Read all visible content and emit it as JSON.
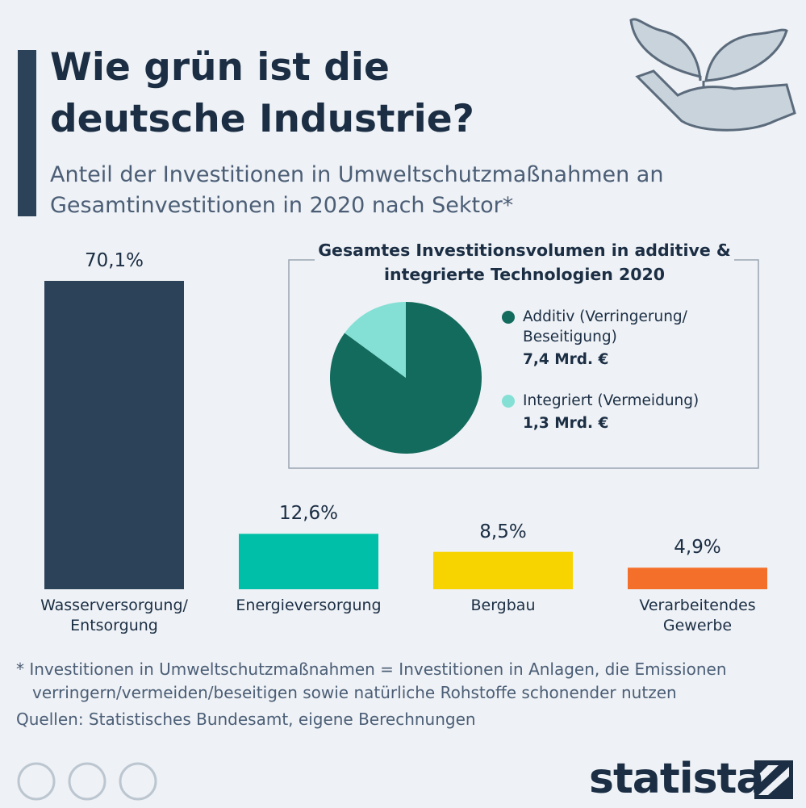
{
  "title": "Wie grün ist die deutsche Industrie?",
  "subtitle": "Anteil der Investitionen in Umweltschutzmaßnahmen an Gesamtinvestitionen in 2020 nach Sektor*",
  "footnote": "* Investitionen in Umweltschutzmaßnahmen = Investitionen in Anlagen, die Emissionen verringern/vermeiden/beseitigen sowie natürliche Rohstoffe schonender nutzen",
  "source": "Quellen: Statistisches Bundesamt, eigene Berechnungen",
  "brand": "statista",
  "chart_data": [
    {
      "type": "bar",
      "categories": [
        "Wasserversorgung/ Entsorgung",
        "Energieversorgung",
        "Bergbau",
        "Verarbeitendes Gewerbe"
      ],
      "values": [
        70.1,
        12.6,
        8.5,
        4.9
      ],
      "value_labels": [
        "70,1%",
        "12,6%",
        "8,5%",
        "4,9%"
      ],
      "colors": [
        "#2b4259",
        "#00bfa8",
        "#f7d300",
        "#f4702a"
      ]
    },
    {
      "type": "pie",
      "title": "Gesamtes Investitionsvolumen in additive & integrierte Technologien 2020",
      "categories": [
        "Additiv (Verringerung/ Beseitigung)",
        "Integriert (Vermeidung)"
      ],
      "values": [
        7.4,
        1.3
      ],
      "value_labels": [
        "7,4 Mrd. €",
        "1,3 Mrd. €"
      ],
      "colors": [
        "#136b5d",
        "#84e0d5"
      ]
    }
  ]
}
